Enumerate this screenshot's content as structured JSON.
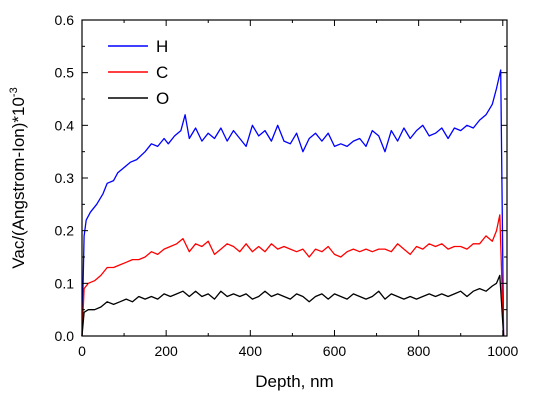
{
  "chart_data": {
    "type": "line",
    "title": "",
    "xlabel": "Depth, nm",
    "ylabel_main": "Vac/(Angstrom-Ion)*10",
    "ylabel_exp": "-3",
    "xlim": [
      0,
      1010
    ],
    "ylim": [
      0,
      0.6
    ],
    "xticks": [
      0,
      200,
      400,
      600,
      800,
      1000
    ],
    "yticks": [
      0.0,
      0.1,
      0.2,
      0.3,
      0.4,
      0.5,
      0.6
    ],
    "xtick_labels": [
      "0",
      "200",
      "400",
      "600",
      "800",
      "1000"
    ],
    "ytick_labels": [
      "0.0",
      "0.1",
      "0.2",
      "0.3",
      "0.4",
      "0.5",
      "0.6"
    ],
    "grid": false,
    "legend_position": "top-left",
    "series": [
      {
        "name": "H",
        "color": "#0000ff",
        "points": [
          [
            0,
            0.0
          ],
          [
            5,
            0.19
          ],
          [
            10,
            0.22
          ],
          [
            20,
            0.235
          ],
          [
            35,
            0.25
          ],
          [
            50,
            0.27
          ],
          [
            60,
            0.29
          ],
          [
            75,
            0.295
          ],
          [
            85,
            0.31
          ],
          [
            100,
            0.32
          ],
          [
            115,
            0.33
          ],
          [
            130,
            0.335
          ],
          [
            150,
            0.35
          ],
          [
            165,
            0.365
          ],
          [
            180,
            0.36
          ],
          [
            195,
            0.375
          ],
          [
            205,
            0.365
          ],
          [
            220,
            0.38
          ],
          [
            235,
            0.39
          ],
          [
            245,
            0.42
          ],
          [
            255,
            0.375
          ],
          [
            270,
            0.395
          ],
          [
            285,
            0.37
          ],
          [
            300,
            0.385
          ],
          [
            315,
            0.375
          ],
          [
            330,
            0.395
          ],
          [
            345,
            0.37
          ],
          [
            360,
            0.39
          ],
          [
            375,
            0.375
          ],
          [
            390,
            0.36
          ],
          [
            405,
            0.4
          ],
          [
            420,
            0.38
          ],
          [
            435,
            0.39
          ],
          [
            450,
            0.37
          ],
          [
            465,
            0.4
          ],
          [
            480,
            0.37
          ],
          [
            495,
            0.365
          ],
          [
            510,
            0.385
          ],
          [
            525,
            0.35
          ],
          [
            540,
            0.375
          ],
          [
            555,
            0.385
          ],
          [
            570,
            0.37
          ],
          [
            585,
            0.385
          ],
          [
            600,
            0.36
          ],
          [
            615,
            0.365
          ],
          [
            630,
            0.36
          ],
          [
            645,
            0.37
          ],
          [
            660,
            0.375
          ],
          [
            675,
            0.36
          ],
          [
            690,
            0.39
          ],
          [
            705,
            0.38
          ],
          [
            720,
            0.35
          ],
          [
            735,
            0.39
          ],
          [
            750,
            0.37
          ],
          [
            765,
            0.395
          ],
          [
            780,
            0.375
          ],
          [
            795,
            0.39
          ],
          [
            810,
            0.4
          ],
          [
            825,
            0.38
          ],
          [
            840,
            0.385
          ],
          [
            855,
            0.395
          ],
          [
            870,
            0.375
          ],
          [
            885,
            0.395
          ],
          [
            900,
            0.39
          ],
          [
            915,
            0.4
          ],
          [
            930,
            0.395
          ],
          [
            945,
            0.41
          ],
          [
            960,
            0.42
          ],
          [
            975,
            0.44
          ],
          [
            985,
            0.47
          ],
          [
            995,
            0.505
          ],
          [
            1002,
            0.0
          ]
        ]
      },
      {
        "name": "C",
        "color": "#ff0000",
        "points": [
          [
            0,
            0.0
          ],
          [
            5,
            0.09
          ],
          [
            15,
            0.1
          ],
          [
            30,
            0.105
          ],
          [
            45,
            0.115
          ],
          [
            60,
            0.13
          ],
          [
            75,
            0.13
          ],
          [
            90,
            0.135
          ],
          [
            105,
            0.14
          ],
          [
            120,
            0.145
          ],
          [
            135,
            0.145
          ],
          [
            150,
            0.15
          ],
          [
            165,
            0.16
          ],
          [
            180,
            0.155
          ],
          [
            195,
            0.165
          ],
          [
            210,
            0.17
          ],
          [
            225,
            0.175
          ],
          [
            240,
            0.185
          ],
          [
            255,
            0.16
          ],
          [
            270,
            0.175
          ],
          [
            285,
            0.17
          ],
          [
            300,
            0.18
          ],
          [
            315,
            0.155
          ],
          [
            330,
            0.165
          ],
          [
            345,
            0.175
          ],
          [
            360,
            0.17
          ],
          [
            375,
            0.16
          ],
          [
            390,
            0.175
          ],
          [
            405,
            0.16
          ],
          [
            420,
            0.17
          ],
          [
            435,
            0.16
          ],
          [
            450,
            0.175
          ],
          [
            465,
            0.165
          ],
          [
            480,
            0.17
          ],
          [
            495,
            0.165
          ],
          [
            510,
            0.16
          ],
          [
            525,
            0.165
          ],
          [
            540,
            0.15
          ],
          [
            555,
            0.165
          ],
          [
            570,
            0.16
          ],
          [
            585,
            0.17
          ],
          [
            600,
            0.155
          ],
          [
            615,
            0.15
          ],
          [
            630,
            0.16
          ],
          [
            645,
            0.165
          ],
          [
            660,
            0.16
          ],
          [
            675,
            0.165
          ],
          [
            690,
            0.16
          ],
          [
            705,
            0.165
          ],
          [
            720,
            0.165
          ],
          [
            735,
            0.16
          ],
          [
            750,
            0.175
          ],
          [
            765,
            0.165
          ],
          [
            780,
            0.155
          ],
          [
            795,
            0.17
          ],
          [
            810,
            0.165
          ],
          [
            825,
            0.175
          ],
          [
            840,
            0.17
          ],
          [
            855,
            0.175
          ],
          [
            870,
            0.165
          ],
          [
            885,
            0.17
          ],
          [
            900,
            0.17
          ],
          [
            915,
            0.165
          ],
          [
            930,
            0.175
          ],
          [
            945,
            0.175
          ],
          [
            960,
            0.19
          ],
          [
            975,
            0.18
          ],
          [
            985,
            0.2
          ],
          [
            993,
            0.23
          ],
          [
            1002,
            0.0
          ]
        ]
      },
      {
        "name": "O",
        "color": "#000000",
        "points": [
          [
            0,
            0.0
          ],
          [
            5,
            0.045
          ],
          [
            15,
            0.05
          ],
          [
            30,
            0.05
          ],
          [
            45,
            0.055
          ],
          [
            60,
            0.065
          ],
          [
            75,
            0.06
          ],
          [
            90,
            0.065
          ],
          [
            105,
            0.07
          ],
          [
            120,
            0.065
          ],
          [
            135,
            0.075
          ],
          [
            150,
            0.07
          ],
          [
            165,
            0.075
          ],
          [
            180,
            0.07
          ],
          [
            195,
            0.08
          ],
          [
            210,
            0.075
          ],
          [
            225,
            0.08
          ],
          [
            240,
            0.085
          ],
          [
            255,
            0.075
          ],
          [
            270,
            0.085
          ],
          [
            285,
            0.075
          ],
          [
            300,
            0.08
          ],
          [
            315,
            0.07
          ],
          [
            330,
            0.085
          ],
          [
            345,
            0.075
          ],
          [
            360,
            0.08
          ],
          [
            375,
            0.075
          ],
          [
            390,
            0.08
          ],
          [
            405,
            0.07
          ],
          [
            420,
            0.075
          ],
          [
            435,
            0.085
          ],
          [
            450,
            0.075
          ],
          [
            465,
            0.08
          ],
          [
            480,
            0.075
          ],
          [
            495,
            0.07
          ],
          [
            510,
            0.08
          ],
          [
            525,
            0.075
          ],
          [
            540,
            0.065
          ],
          [
            555,
            0.075
          ],
          [
            570,
            0.08
          ],
          [
            585,
            0.07
          ],
          [
            600,
            0.08
          ],
          [
            615,
            0.075
          ],
          [
            630,
            0.07
          ],
          [
            645,
            0.08
          ],
          [
            660,
            0.075
          ],
          [
            675,
            0.07
          ],
          [
            690,
            0.075
          ],
          [
            705,
            0.085
          ],
          [
            720,
            0.07
          ],
          [
            735,
            0.08
          ],
          [
            750,
            0.075
          ],
          [
            765,
            0.07
          ],
          [
            780,
            0.075
          ],
          [
            795,
            0.07
          ],
          [
            810,
            0.075
          ],
          [
            825,
            0.08
          ],
          [
            840,
            0.075
          ],
          [
            855,
            0.08
          ],
          [
            870,
            0.075
          ],
          [
            885,
            0.08
          ],
          [
            900,
            0.085
          ],
          [
            915,
            0.075
          ],
          [
            930,
            0.085
          ],
          [
            945,
            0.09
          ],
          [
            960,
            0.085
          ],
          [
            975,
            0.095
          ],
          [
            985,
            0.1
          ],
          [
            993,
            0.115
          ],
          [
            1002,
            0.0
          ]
        ]
      }
    ]
  }
}
